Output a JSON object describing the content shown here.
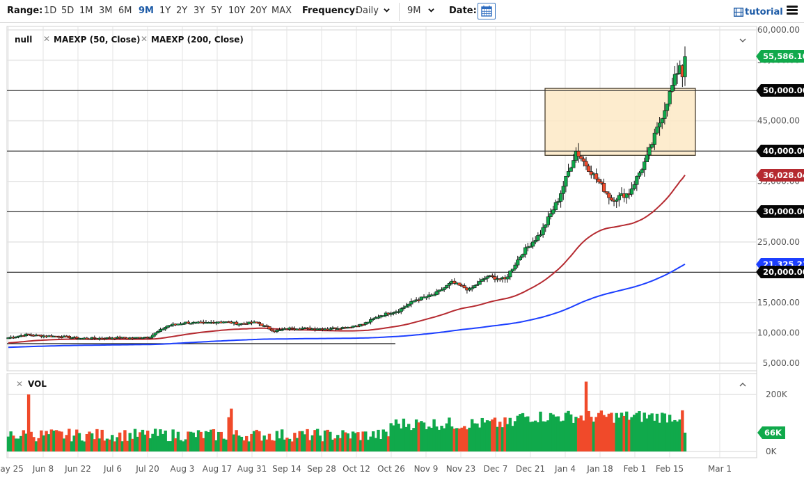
{
  "toolbar": {
    "range_label": "Range:",
    "ranges": [
      "1D",
      "5D",
      "1M",
      "3M",
      "6M",
      "9M",
      "1Y",
      "2Y",
      "3Y",
      "5Y",
      "10Y",
      "20Y",
      "MAX"
    ],
    "active_range": "9M",
    "frequency_label": "Frequency:",
    "frequency_value": "Daily",
    "period_value": "9M",
    "date_label": "Date:",
    "tutorial_label": "tutorial",
    "icons": {
      "calendar": "calendar-icon",
      "tutorial": "film-icon",
      "menu": "hamburger-menu-icon",
      "dropdown": "chevron-down-icon"
    }
  },
  "legend": {
    "main_series": "null",
    "studies": [
      "MAEXP (50, Close)",
      "MAEXP (200, Close)"
    ],
    "volume": "VOL"
  },
  "colors": {
    "up": "#10a94b",
    "down": "#f04a2a",
    "ma50": "#b52a30",
    "ma200": "#1c3fff",
    "box_fill": "#fde9c6",
    "box_stroke": "#3a3020",
    "grid": "#e3e3e3",
    "hline": "#333333"
  },
  "price_axis": {
    "ticks": [
      "60,000.00",
      "55,000.00",
      "50,000.00",
      "45,000.00",
      "40,000.00",
      "35,000.00",
      "30,000.00",
      "25,000.00",
      "20,000.00",
      "15,000.00",
      "10,000.00",
      "5,000.00"
    ],
    "tick_values": [
      60000,
      55000,
      50000,
      45000,
      40000,
      35000,
      30000,
      25000,
      20000,
      15000,
      10000,
      5000
    ]
  },
  "price_tags": [
    {
      "label": "55,586.10",
      "value": 55586.1,
      "style": "green"
    },
    {
      "label": "50,000.00",
      "value": 50000,
      "style": "black"
    },
    {
      "label": "40,000.00",
      "value": 40000,
      "style": "black"
    },
    {
      "label": "36,028.04",
      "value": 36028.04,
      "style": "red"
    },
    {
      "label": "30,000.00",
      "value": 30000,
      "style": "black"
    },
    {
      "label": "21,325.21",
      "value": 21325.21,
      "style": "blue"
    },
    {
      "label": "20,000.00",
      "value": 20000,
      "style": "black"
    }
  ],
  "volume_axis": {
    "ticks": [
      "200K",
      "0K"
    ],
    "tag": "66K"
  },
  "x_axis": {
    "ticks": [
      "May 25",
      "Jun 8",
      "Jun 22",
      "Jul 6",
      "Jul 20",
      "Aug 3",
      "Aug 17",
      "Aug 31",
      "Sep 14",
      "Sep 28",
      "Oct 12",
      "Oct 26",
      "Nov 9",
      "Nov 23",
      "Dec 7",
      "Dec 21",
      "Jan 4",
      "Jan 18",
      "Feb 1",
      "Feb 15",
      "Mar 1"
    ]
  },
  "chart_data": {
    "type": "candlestick",
    "title": "",
    "xlabel": "",
    "ylabel": "",
    "ylim": [
      2000,
      61000
    ],
    "frequency": "Daily",
    "range": "9M",
    "horizontal_lines": [
      50000,
      40000,
      30000,
      20000
    ],
    "support_line": {
      "from": "May 23",
      "to": "Oct 26",
      "value": 8100
    },
    "highlight_box": {
      "from": "Jan 1",
      "to": "Feb 21",
      "y_low": 39300,
      "y_high": 50000
    },
    "last_close": 55586.1,
    "series": [
      {
        "name": "Price (candles)",
        "weekly_closes": [
          {
            "week": "May 25",
            "close": 9200
          },
          {
            "week": "Jun 1",
            "close": 9700
          },
          {
            "week": "Jun 8",
            "close": 9500
          },
          {
            "week": "Jun 15",
            "close": 9400
          },
          {
            "week": "Jun 22",
            "close": 9100
          },
          {
            "week": "Jun 29",
            "close": 9100
          },
          {
            "week": "Jul 6",
            "close": 9200
          },
          {
            "week": "Jul 13",
            "close": 9150
          },
          {
            "week": "Jul 20",
            "close": 9400
          },
          {
            "week": "Jul 27",
            "close": 11200
          },
          {
            "week": "Aug 3",
            "close": 11700
          },
          {
            "week": "Aug 10",
            "close": 11600
          },
          {
            "week": "Aug 17",
            "close": 11900
          },
          {
            "week": "Aug 24",
            "close": 11500
          },
          {
            "week": "Aug 31",
            "close": 11700
          },
          {
            "week": "Sep 7",
            "close": 10300
          },
          {
            "week": "Sep 14",
            "close": 10800
          },
          {
            "week": "Sep 21",
            "close": 10700
          },
          {
            "week": "Sep 28",
            "close": 10700
          },
          {
            "week": "Oct 5",
            "close": 10900
          },
          {
            "week": "Oct 12",
            "close": 11400
          },
          {
            "week": "Oct 19",
            "close": 12900
          },
          {
            "week": "Oct 26",
            "close": 13700
          },
          {
            "week": "Nov 2",
            "close": 15500
          },
          {
            "week": "Nov 9",
            "close": 16300
          },
          {
            "week": "Nov 16",
            "close": 18300
          },
          {
            "week": "Nov 23",
            "close": 17100
          },
          {
            "week": "Nov 30",
            "close": 19300
          },
          {
            "week": "Dec 7",
            "close": 18800
          },
          {
            "week": "Dec 14",
            "close": 23300
          },
          {
            "week": "Dec 21",
            "close": 26400
          },
          {
            "week": "Dec 28",
            "close": 32000
          },
          {
            "week": "Jan 4",
            "close": 40000
          },
          {
            "week": "Jan 11",
            "close": 36000
          },
          {
            "week": "Jan 18",
            "close": 32000
          },
          {
            "week": "Jan 25",
            "close": 33100
          },
          {
            "week": "Feb 1",
            "close": 38900
          },
          {
            "week": "Feb 8",
            "close": 47100
          },
          {
            "week": "Feb 15",
            "close": 55586.1
          }
        ]
      },
      {
        "name": "MAEXP (50, Close)",
        "last": 36028.04
      },
      {
        "name": "MAEXP (200, Close)",
        "last": 21325.21
      }
    ],
    "volume": {
      "name": "VOL",
      "last": "66K",
      "max_visible": "about 250K (Jan 11)",
      "ylim": [
        0,
        200000
      ]
    }
  }
}
